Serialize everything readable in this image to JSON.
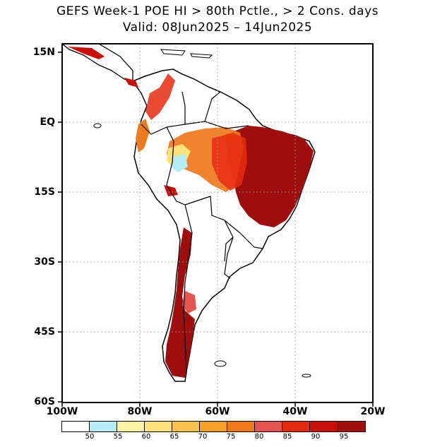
{
  "title": {
    "line1": "GEFS Week-1 POE HI > 80th Pctle., > 2 Cons. days",
    "line2": "Valid: 08Jun2025 – 14Jun2025"
  },
  "map": {
    "region": "South America",
    "lon_range": [
      -100,
      -20
    ],
    "lat_range": [
      -60,
      15
    ],
    "y_ticks": [
      "15N",
      "EQ",
      "15S",
      "30S",
      "45S",
      "60S"
    ],
    "x_ticks": [
      "100W",
      "80W",
      "60W",
      "40W",
      "20W"
    ],
    "grid_lines": "dotted"
  },
  "colorbar": {
    "colors": [
      "#ffffff",
      "#b4ecf8",
      "#fff3a8",
      "#fde27a",
      "#f9c14e",
      "#f7a12a",
      "#ef7a1c",
      "#e4554f",
      "#e62a10",
      "#c90f0a",
      "#9e0e0e"
    ],
    "labels": [
      "50",
      "55",
      "60",
      "65",
      "70",
      "75",
      "80",
      "85",
      "90",
      "95"
    ]
  }
}
